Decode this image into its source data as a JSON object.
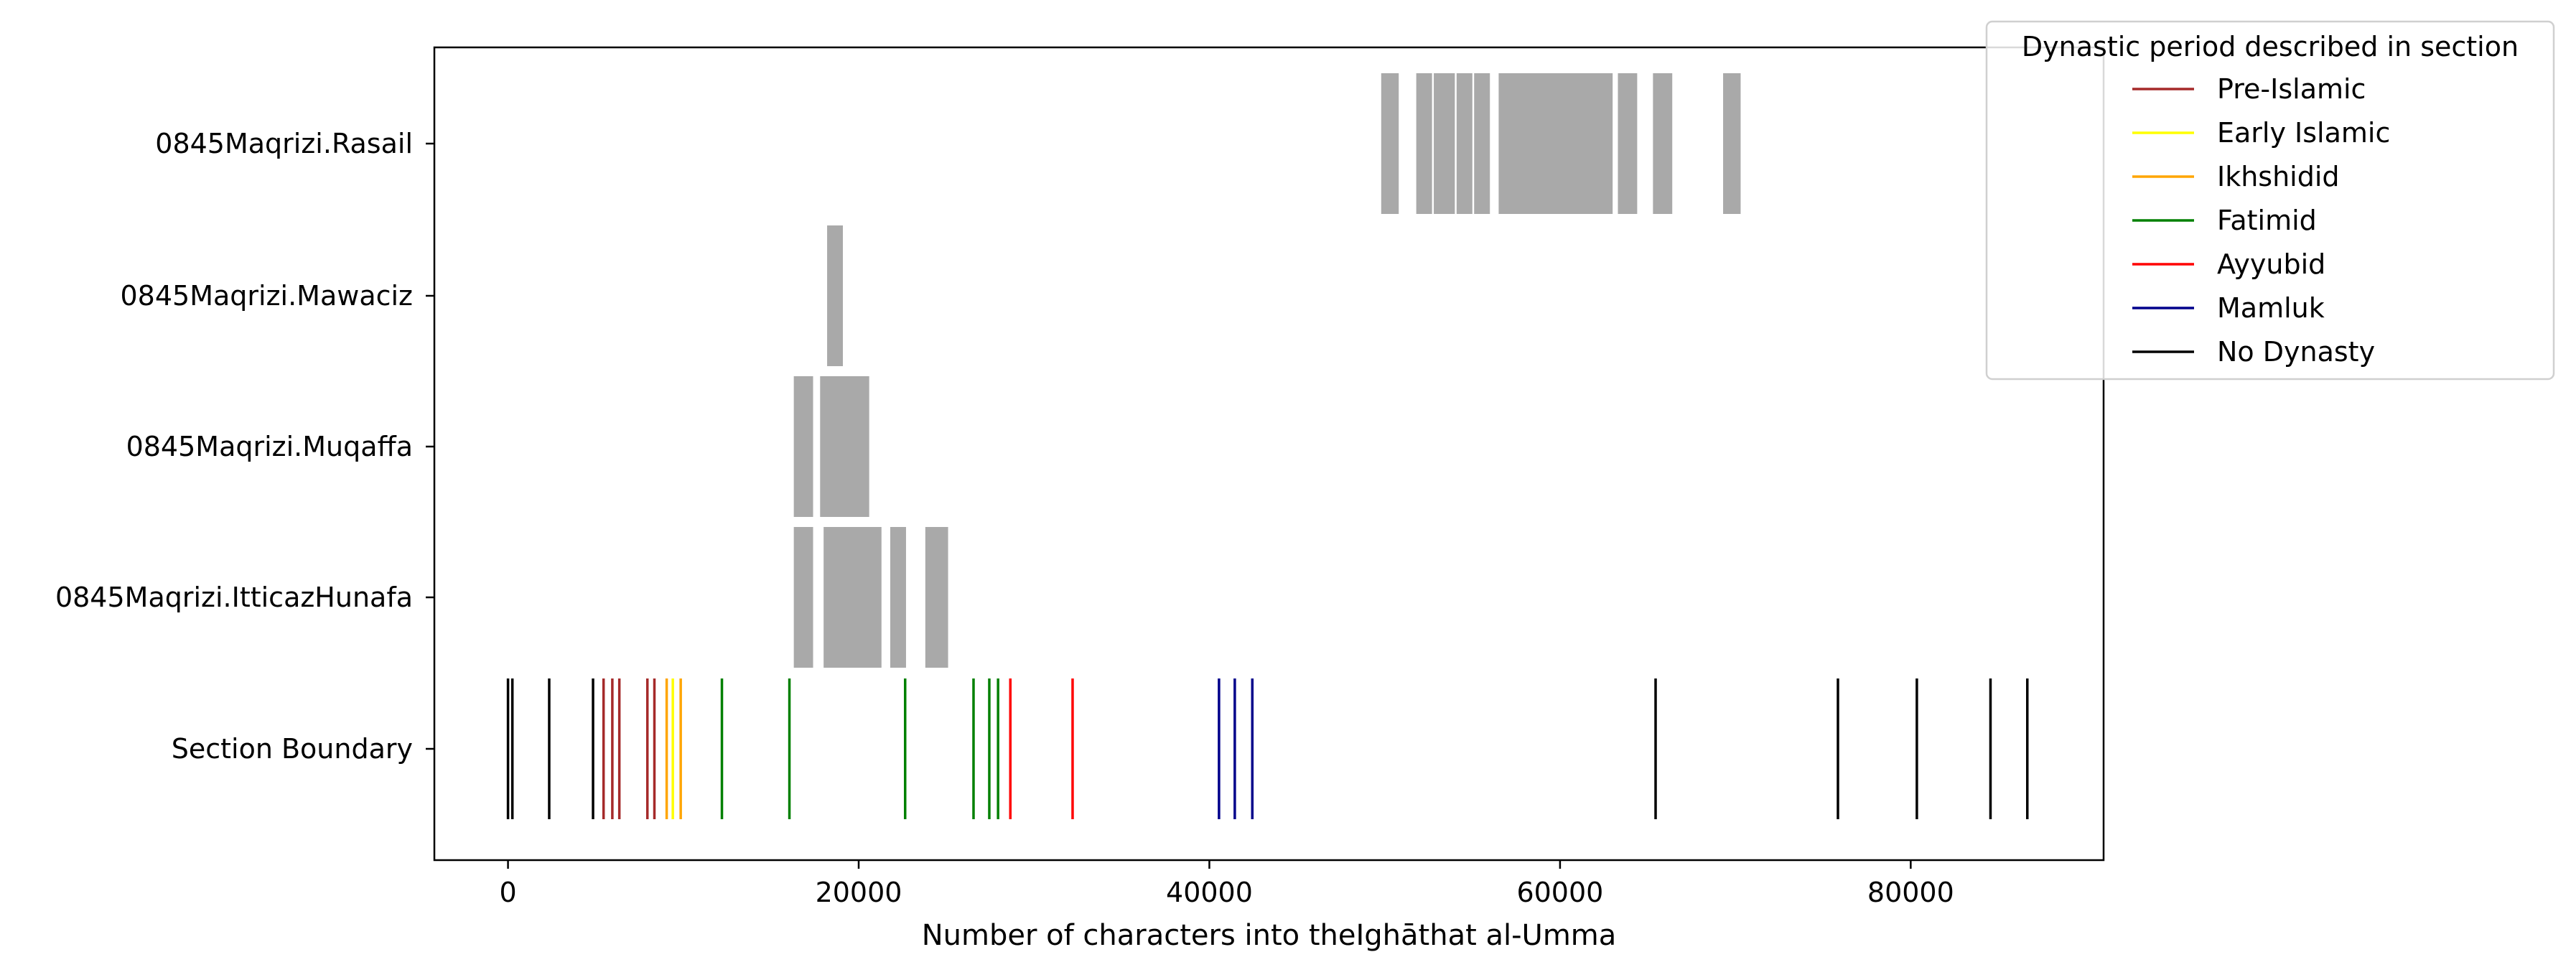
{
  "chart_data": {
    "type": "broken_barh",
    "title": "",
    "xlabel": "Number of characters into theIghāthat al-Umma",
    "ylabel": "",
    "xlim": [
      -4200,
      91000
    ],
    "xticks": [
      0,
      20000,
      40000,
      60000,
      80000
    ],
    "xtick_labels": [
      "0",
      "20000",
      "40000",
      "60000",
      "80000"
    ],
    "grid": false,
    "categories": [
      "0845Maqrizi.Rasail",
      "0845Maqrizi.Mawaciz",
      "0845Maqrizi.Muqaffa",
      "0845Maqrizi.IttіcazHunafa",
      "Section Boundary"
    ],
    "reuse_segments": [
      {
        "name": "0845Maqrizi.Rasail",
        "color": "#a9a9a9",
        "segments": [
          [
            49800,
            1000
          ],
          [
            51800,
            900
          ],
          [
            52800,
            1200
          ],
          [
            54100,
            900
          ],
          [
            55100,
            900
          ],
          [
            56500,
            6500
          ],
          [
            63300,
            1100
          ],
          [
            65300,
            1100
          ],
          [
            69300,
            1000
          ]
        ]
      },
      {
        "name": "0845Maqrizi.Mawaciz",
        "color": "#a9a9a9",
        "segments": [
          [
            18200,
            900
          ]
        ]
      },
      {
        "name": "0845Maqrizi.Muqaffa",
        "color": "#a9a9a9",
        "segments": [
          [
            16300,
            1100
          ],
          [
            17800,
            2800
          ]
        ]
      },
      {
        "name": "0845Maqrizi.IttіcazHunafa",
        "color": "#a9a9a9",
        "segments": [
          [
            16300,
            1100
          ],
          [
            18000,
            3300
          ],
          [
            21800,
            900
          ],
          [
            23800,
            1300
          ]
        ]
      }
    ],
    "section_boundaries": [
      {
        "x": 0,
        "period": "No Dynasty"
      },
      {
        "x": 250,
        "period": "No Dynasty"
      },
      {
        "x": 2350,
        "period": "No Dynasty"
      },
      {
        "x": 4850,
        "period": "No Dynasty"
      },
      {
        "x": 5450,
        "period": "Pre-Islamic"
      },
      {
        "x": 5950,
        "period": "Pre-Islamic"
      },
      {
        "x": 6350,
        "period": "Pre-Islamic"
      },
      {
        "x": 7950,
        "period": "Pre-Islamic"
      },
      {
        "x": 8350,
        "period": "Pre-Islamic"
      },
      {
        "x": 9050,
        "period": "Ikhshidid"
      },
      {
        "x": 9400,
        "period": "Early Islamic"
      },
      {
        "x": 9850,
        "period": "Ikhshidid"
      },
      {
        "x": 12200,
        "period": "Fatimid"
      },
      {
        "x": 16050,
        "period": "Fatimid"
      },
      {
        "x": 22650,
        "period": "Fatimid"
      },
      {
        "x": 26550,
        "period": "Fatimid"
      },
      {
        "x": 27450,
        "period": "Fatimid"
      },
      {
        "x": 27950,
        "period": "Fatimid"
      },
      {
        "x": 28650,
        "period": "Ayyubid"
      },
      {
        "x": 32200,
        "period": "Ayyubid"
      },
      {
        "x": 40550,
        "period": "Mamluk"
      },
      {
        "x": 41450,
        "period": "Mamluk"
      },
      {
        "x": 42450,
        "period": "Mamluk"
      },
      {
        "x": 65450,
        "period": "No Dynasty"
      },
      {
        "x": 75850,
        "period": "No Dynasty"
      },
      {
        "x": 80350,
        "period": "No Dynasty"
      },
      {
        "x": 84550,
        "period": "No Dynasty"
      },
      {
        "x": 86650,
        "period": "No Dynasty"
      }
    ],
    "legend": {
      "title": "Dynastic period described in section",
      "placement": "top-right (outside axes)",
      "entries": [
        {
          "label": "Pre-Islamic",
          "color": "#a52a2a"
        },
        {
          "label": "Early Islamic",
          "color": "#ffff00"
        },
        {
          "label": "Ikhshidid",
          "color": "#ffa500"
        },
        {
          "label": "Fatimid",
          "color": "#008000"
        },
        {
          "label": "Ayyubid",
          "color": "#ff0000"
        },
        {
          "label": "Mamluk",
          "color": "#00008b"
        },
        {
          "label": "No Dynasty",
          "color": "#000000"
        }
      ]
    }
  }
}
